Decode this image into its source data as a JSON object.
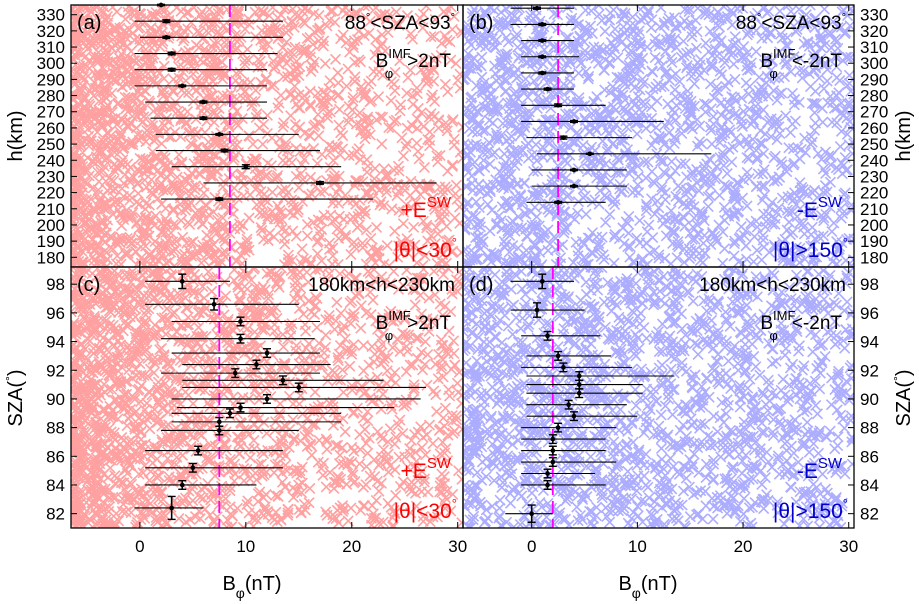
{
  "colors": {
    "red_cloud": "#ff9c9c",
    "blue_cloud": "#a9a9ff",
    "mean_line": "#ff00ff",
    "red_text": "#ff0000",
    "blue_text": "#0000cc",
    "axis": "#000000"
  },
  "shared": {
    "xlabel": "B",
    "xlabel_sub": "φ",
    "xlabel_unit": "(nT)",
    "ylabel_top": "h(km)",
    "ylabel_bottom": "SZA(",
    "ylabel_bottom_deg": "°",
    "ylabel_bottom_close": ")",
    "xticks": [
      "0",
      "10",
      "20",
      "30"
    ]
  },
  "chart_data": [
    {
      "id": "a",
      "type": "scatter",
      "panel_label": "(a)",
      "cloud": "red",
      "title": "88",
      "title_deg": "°",
      "title_rest": "<SZA<93",
      "title_deg2": "°",
      "bcond_main": "B",
      "bcond_sup": "IMF",
      "bcond_sub": "φ",
      "bcond_rest": ">2nT",
      "field_label": "+E",
      "field_sup": "SW",
      "theta_label": "|θ|<30",
      "theta_deg": "°",
      "xlim": [
        -6.5,
        30.5
      ],
      "ylim": [
        174,
        336
      ],
      "yticks": [
        180,
        190,
        200,
        210,
        220,
        230,
        240,
        250,
        260,
        270,
        280,
        290,
        300,
        310,
        320,
        330
      ],
      "mean_line": 8.5,
      "points": [
        {
          "y": 336,
          "x": 2.0,
          "err": 0.4,
          "lo": 1.0,
          "hi": 2.5
        },
        {
          "y": 326,
          "x": 2.5,
          "err": 0.8,
          "lo": -0.5,
          "hi": 13.5
        },
        {
          "y": 316,
          "x": 2.5,
          "err": 0.6,
          "lo": 0.0,
          "hi": 13.5
        },
        {
          "y": 306,
          "x": 3.0,
          "err": 0.8,
          "lo": -0.5,
          "hi": 13.0
        },
        {
          "y": 296,
          "x": 3.0,
          "err": 0.8,
          "lo": -0.5,
          "hi": 12.0
        },
        {
          "y": 286,
          "x": 4.0,
          "err": 0.5,
          "lo": -0.5,
          "hi": 12.0
        },
        {
          "y": 276,
          "x": 6.0,
          "err": 0.6,
          "lo": 0.5,
          "hi": 12.0
        },
        {
          "y": 266,
          "x": 6.0,
          "err": 0.7,
          "lo": 1.0,
          "hi": 12.0
        },
        {
          "y": 256,
          "x": 7.5,
          "err": 0.5,
          "lo": 1.5,
          "hi": 15.0
        },
        {
          "y": 246,
          "x": 8.0,
          "err": 0.8,
          "lo": 1.5,
          "hi": 17.0
        },
        {
          "y": 236,
          "x": 10.0,
          "err": 1.2,
          "lo": 3.0,
          "hi": 19.0
        },
        {
          "y": 226,
          "x": 17.0,
          "err": 0.8,
          "lo": 6.0,
          "hi": 28.0
        },
        {
          "y": 216,
          "x": 7.5,
          "err": 0.7,
          "lo": 2.0,
          "hi": 22.0
        }
      ]
    },
    {
      "id": "b",
      "type": "scatter",
      "panel_label": "(b)",
      "cloud": "blue",
      "title": "88",
      "title_deg": "°",
      "title_rest": "<SZA<93",
      "title_deg2": "°",
      "bcond_main": "B",
      "bcond_sup": "IMF",
      "bcond_sub": "φ",
      "bcond_rest": "<-2nT",
      "field_label": "-E",
      "field_sup": "SW",
      "theta_label": "|θ|>150",
      "theta_deg": "°",
      "xlim": [
        -6.5,
        30.5
      ],
      "ylim": [
        174,
        336
      ],
      "yticks": [
        180,
        190,
        200,
        210,
        220,
        230,
        240,
        250,
        260,
        270,
        280,
        290,
        300,
        310,
        320,
        330
      ],
      "mean_line": 2.5,
      "points": [
        {
          "y": 334,
          "x": 0.5,
          "err": 0.6,
          "lo": -2.0,
          "hi": 4.0
        },
        {
          "y": 324,
          "x": 1.0,
          "err": 0.6,
          "lo": -2.0,
          "hi": 4.0
        },
        {
          "y": 314,
          "x": 1.0,
          "err": 0.5,
          "lo": -1.0,
          "hi": 4.0
        },
        {
          "y": 304,
          "x": 1.0,
          "err": 0.5,
          "lo": -1.0,
          "hi": 4.5
        },
        {
          "y": 294,
          "x": 1.0,
          "err": 0.6,
          "lo": -1.0,
          "hi": 4.0
        },
        {
          "y": 284,
          "x": 1.5,
          "err": 0.6,
          "lo": -1.0,
          "hi": 4.0
        },
        {
          "y": 274,
          "x": 2.5,
          "err": 0.8,
          "lo": -1.0,
          "hi": 7.0
        },
        {
          "y": 264,
          "x": 4.0,
          "err": 0.6,
          "lo": -1.0,
          "hi": 12.5
        },
        {
          "y": 254,
          "x": 3.0,
          "err": 0.9,
          "lo": -0.5,
          "hi": 9.5
        },
        {
          "y": 244,
          "x": 5.5,
          "err": 0.3,
          "lo": 0.5,
          "hi": 17.0
        },
        {
          "y": 234,
          "x": 4.0,
          "err": 0.4,
          "lo": 0.0,
          "hi": 9.0
        },
        {
          "y": 224,
          "x": 4.0,
          "err": 0.4,
          "lo": 0.0,
          "hi": 9.0
        },
        {
          "y": 214,
          "x": 2.5,
          "err": 0.5,
          "lo": -0.5,
          "hi": 7.0
        }
      ]
    },
    {
      "id": "c",
      "type": "scatter",
      "panel_label": "(c)",
      "cloud": "red",
      "title": "180km<h<230km",
      "title_deg": "",
      "title_rest": "",
      "title_deg2": "",
      "bcond_main": "B",
      "bcond_sup": "IMF",
      "bcond_sub": "φ",
      "bcond_rest": ">2nT",
      "field_label": "+E",
      "field_sup": "SW",
      "theta_label": "|θ|<30",
      "theta_deg": "°",
      "xlim": [
        -6.5,
        30.5
      ],
      "ylim": [
        81,
        99.2
      ],
      "yticks": [
        82,
        84,
        86,
        88,
        90,
        92,
        94,
        96,
        98
      ],
      "mean_line": 7.5,
      "points": [
        {
          "y": 98.2,
          "x": 4.0,
          "err": 0.5,
          "lo": 0.5,
          "hi": 8.5
        },
        {
          "y": 96.6,
          "x": 7.0,
          "err": 0.4,
          "lo": 0.5,
          "hi": 15.0
        },
        {
          "y": 95.4,
          "x": 9.5,
          "err": 0.3,
          "lo": 3.0,
          "hi": 17.0
        },
        {
          "y": 94.2,
          "x": 9.5,
          "err": 0.3,
          "lo": 2.0,
          "hi": 16.5
        },
        {
          "y": 93.2,
          "x": 12.0,
          "err": 0.3,
          "lo": 3.0,
          "hi": 17.0
        },
        {
          "y": 92.4,
          "x": 11.0,
          "err": 0.3,
          "lo": 4.0,
          "hi": 18.0
        },
        {
          "y": 91.8,
          "x": 9.0,
          "err": 0.3,
          "lo": 2.0,
          "hi": 17.0
        },
        {
          "y": 91.3,
          "x": 13.5,
          "err": 0.3,
          "lo": 4.0,
          "hi": 23.0
        },
        {
          "y": 90.8,
          "x": 15.0,
          "err": 0.3,
          "lo": 4.0,
          "hi": 27.0
        },
        {
          "y": 90.0,
          "x": 12.0,
          "err": 0.3,
          "lo": 3.0,
          "hi": 26.5
        },
        {
          "y": 89.4,
          "x": 9.5,
          "err": 0.3,
          "lo": 3.5,
          "hi": 24.0
        },
        {
          "y": 89.0,
          "x": 8.5,
          "err": 0.3,
          "lo": 3.0,
          "hi": 19.0
        },
        {
          "y": 88.4,
          "x": 7.5,
          "err": 0.3,
          "lo": 3.0,
          "hi": 19.0
        },
        {
          "y": 87.8,
          "x": 7.5,
          "err": 0.3,
          "lo": 2.0,
          "hi": 15.0
        },
        {
          "y": 86.4,
          "x": 5.5,
          "err": 0.3,
          "lo": 0.5,
          "hi": 13.5
        },
        {
          "y": 85.2,
          "x": 5.0,
          "err": 0.3,
          "lo": 0.5,
          "hi": 13.5
        },
        {
          "y": 84.0,
          "x": 4.0,
          "err": 0.3,
          "lo": 0.5,
          "hi": 11.0
        },
        {
          "y": 82.4,
          "x": 3.0,
          "err": 0.8,
          "lo": -0.5,
          "hi": 6.0
        }
      ]
    },
    {
      "id": "d",
      "type": "scatter",
      "panel_label": "(d)",
      "cloud": "blue",
      "title": "180km<h<230km",
      "title_deg": "",
      "title_rest": "",
      "title_deg2": "",
      "bcond_main": "B",
      "bcond_sup": "IMF",
      "bcond_sub": "φ",
      "bcond_rest": "<-2nT",
      "field_label": "-E",
      "field_sup": "SW",
      "theta_label": "|θ|>150",
      "theta_deg": "°",
      "xlim": [
        -6.5,
        30.5
      ],
      "ylim": [
        81,
        99.2
      ],
      "yticks": [
        82,
        84,
        86,
        88,
        90,
        92,
        94,
        96,
        98
      ],
      "mean_line": 2.0,
      "points": [
        {
          "y": 98.2,
          "x": 1.0,
          "err": 0.5,
          "lo": -2.0,
          "hi": 4.0
        },
        {
          "y": 96.2,
          "x": 0.5,
          "err": 0.5,
          "lo": -2.0,
          "hi": 5.0
        },
        {
          "y": 94.4,
          "x": 1.5,
          "err": 0.3,
          "lo": -1.0,
          "hi": 6.5
        },
        {
          "y": 93.0,
          "x": 2.5,
          "err": 0.3,
          "lo": -0.5,
          "hi": 7.5
        },
        {
          "y": 92.2,
          "x": 3.0,
          "err": 0.3,
          "lo": -1.0,
          "hi": 9.5
        },
        {
          "y": 91.6,
          "x": 4.5,
          "err": 0.3,
          "lo": -0.5,
          "hi": 13.5
        },
        {
          "y": 91.0,
          "x": 4.5,
          "err": 0.3,
          "lo": -0.5,
          "hi": 10.5
        },
        {
          "y": 90.4,
          "x": 4.5,
          "err": 0.3,
          "lo": -0.5,
          "hi": 10.5
        },
        {
          "y": 89.6,
          "x": 3.5,
          "err": 0.3,
          "lo": -0.5,
          "hi": 9.0
        },
        {
          "y": 88.8,
          "x": 4.0,
          "err": 0.3,
          "lo": -0.5,
          "hi": 10.0
        },
        {
          "y": 88.0,
          "x": 2.5,
          "err": 0.3,
          "lo": -1.0,
          "hi": 8.0
        },
        {
          "y": 87.2,
          "x": 2.0,
          "err": 0.3,
          "lo": -1.0,
          "hi": 7.0
        },
        {
          "y": 86.4,
          "x": 2.0,
          "err": 0.3,
          "lo": -1.0,
          "hi": 7.0
        },
        {
          "y": 85.6,
          "x": 2.0,
          "err": 0.3,
          "lo": -1.0,
          "hi": 8.0
        },
        {
          "y": 84.8,
          "x": 1.5,
          "err": 0.3,
          "lo": -1.0,
          "hi": 6.0
        },
        {
          "y": 84.0,
          "x": 1.5,
          "err": 0.3,
          "lo": -1.0,
          "hi": 7.0
        },
        {
          "y": 82.0,
          "x": 0.0,
          "err": 0.6,
          "lo": -2.5,
          "hi": 2.0
        }
      ]
    }
  ]
}
